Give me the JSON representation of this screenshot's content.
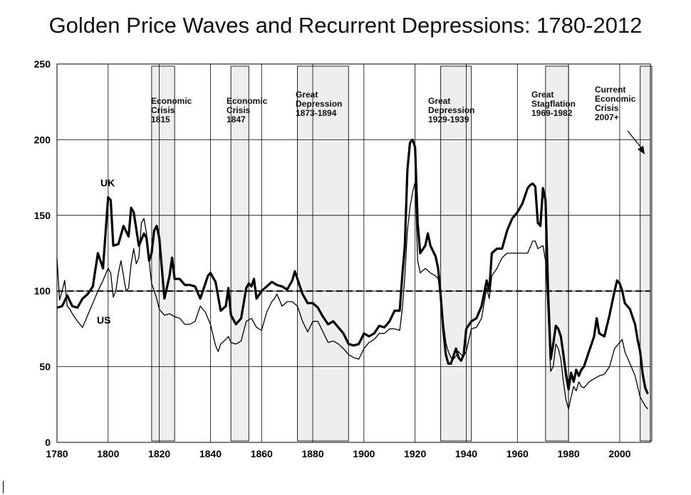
{
  "chart_data": {
    "type": "line",
    "title": "Golden Price Waves and Recurrent Depressions: 1780-2012",
    "xlabel": "",
    "ylabel": "",
    "xlim": [
      1780,
      2012
    ],
    "ylim": [
      0,
      250
    ],
    "xticks": [
      "1780",
      "1800",
      "1820",
      "1840",
      "1860",
      "1880",
      "1900",
      "1920",
      "1940",
      "1960",
      "1980",
      "2000"
    ],
    "yticks": [
      "0",
      "50",
      "100",
      "150",
      "200",
      "250"
    ],
    "grid": true,
    "reference_line": 100,
    "series": [
      {
        "name": "UK",
        "label": "UK",
        "style": "thick",
        "points": [
          [
            1780,
            89
          ],
          [
            1782,
            90
          ],
          [
            1784,
            97
          ],
          [
            1786,
            90
          ],
          [
            1788,
            89
          ],
          [
            1790,
            95
          ],
          [
            1792,
            98
          ],
          [
            1794,
            103
          ],
          [
            1796,
            125
          ],
          [
            1798,
            115
          ],
          [
            1800,
            162
          ],
          [
            1801,
            160
          ],
          [
            1802,
            130
          ],
          [
            1804,
            131
          ],
          [
            1806,
            143
          ],
          [
            1808,
            136
          ],
          [
            1809,
            155
          ],
          [
            1810,
            152
          ],
          [
            1812,
            130
          ],
          [
            1814,
            138
          ],
          [
            1815,
            135
          ],
          [
            1816,
            120
          ],
          [
            1817,
            125
          ],
          [
            1818,
            140
          ],
          [
            1819,
            143
          ],
          [
            1820,
            135
          ],
          [
            1822,
            95
          ],
          [
            1824,
            110
          ],
          [
            1825,
            122
          ],
          [
            1826,
            108
          ],
          [
            1828,
            108
          ],
          [
            1830,
            104
          ],
          [
            1832,
            104
          ],
          [
            1834,
            103
          ],
          [
            1836,
            95
          ],
          [
            1838,
            105
          ],
          [
            1839,
            110
          ],
          [
            1840,
            112
          ],
          [
            1842,
            106
          ],
          [
            1844,
            87
          ],
          [
            1846,
            90
          ],
          [
            1847,
            102
          ],
          [
            1848,
            84
          ],
          [
            1850,
            78
          ],
          [
            1852,
            82
          ],
          [
            1853,
            92
          ],
          [
            1854,
            102
          ],
          [
            1855,
            105
          ],
          [
            1856,
            103
          ],
          [
            1857,
            108
          ],
          [
            1858,
            95
          ],
          [
            1860,
            100
          ],
          [
            1862,
            103
          ],
          [
            1864,
            106
          ],
          [
            1866,
            104
          ],
          [
            1868,
            103
          ],
          [
            1870,
            101
          ],
          [
            1872,
            107
          ],
          [
            1873,
            113
          ],
          [
            1874,
            108
          ],
          [
            1876,
            98
          ],
          [
            1878,
            92
          ],
          [
            1880,
            92
          ],
          [
            1882,
            89
          ],
          [
            1884,
            83
          ],
          [
            1886,
            78
          ],
          [
            1888,
            80
          ],
          [
            1890,
            76
          ],
          [
            1892,
            72
          ],
          [
            1894,
            65
          ],
          [
            1896,
            64
          ],
          [
            1898,
            65
          ],
          [
            1900,
            72
          ],
          [
            1902,
            70
          ],
          [
            1904,
            72
          ],
          [
            1906,
            77
          ],
          [
            1908,
            76
          ],
          [
            1910,
            80
          ],
          [
            1912,
            87
          ],
          [
            1914,
            87
          ],
          [
            1915,
            110
          ],
          [
            1916,
            130
          ],
          [
            1917,
            180
          ],
          [
            1918,
            198
          ],
          [
            1919,
            200
          ],
          [
            1920,
            195
          ],
          [
            1921,
            145
          ],
          [
            1922,
            125
          ],
          [
            1924,
            130
          ],
          [
            1925,
            138
          ],
          [
            1926,
            130
          ],
          [
            1928,
            123
          ],
          [
            1929,
            115
          ],
          [
            1930,
            97
          ],
          [
            1931,
            75
          ],
          [
            1932,
            58
          ],
          [
            1933,
            52
          ],
          [
            1934,
            52
          ],
          [
            1935,
            57
          ],
          [
            1936,
            62
          ],
          [
            1937,
            56
          ],
          [
            1938,
            54
          ],
          [
            1939,
            58
          ],
          [
            1940,
            75
          ],
          [
            1942,
            80
          ],
          [
            1944,
            82
          ],
          [
            1946,
            90
          ],
          [
            1948,
            107
          ],
          [
            1949,
            100
          ],
          [
            1950,
            125
          ],
          [
            1952,
            128
          ],
          [
            1954,
            128
          ],
          [
            1956,
            140
          ],
          [
            1958,
            148
          ],
          [
            1960,
            152
          ],
          [
            1962,
            158
          ],
          [
            1964,
            168
          ],
          [
            1965,
            170
          ],
          [
            1966,
            171
          ],
          [
            1967,
            169
          ],
          [
            1968,
            145
          ],
          [
            1969,
            143
          ],
          [
            1970,
            168
          ],
          [
            1971,
            160
          ],
          [
            1972,
            100
          ],
          [
            1973,
            55
          ],
          [
            1974,
            65
          ],
          [
            1975,
            77
          ],
          [
            1976,
            75
          ],
          [
            1977,
            70
          ],
          [
            1978,
            58
          ],
          [
            1979,
            45
          ],
          [
            1980,
            35
          ],
          [
            1981,
            46
          ],
          [
            1982,
            40
          ],
          [
            1983,
            48
          ],
          [
            1984,
            44
          ],
          [
            1985,
            48
          ],
          [
            1986,
            50
          ],
          [
            1988,
            60
          ],
          [
            1990,
            70
          ],
          [
            1991,
            82
          ],
          [
            1992,
            72
          ],
          [
            1994,
            70
          ],
          [
            1996,
            84
          ],
          [
            1998,
            100
          ],
          [
            1999,
            107
          ],
          [
            2000,
            105
          ],
          [
            2001,
            100
          ],
          [
            2002,
            92
          ],
          [
            2004,
            88
          ],
          [
            2006,
            78
          ],
          [
            2007,
            68
          ],
          [
            2008,
            60
          ],
          [
            2009,
            45
          ],
          [
            2010,
            36
          ],
          [
            2011,
            32
          ]
        ]
      },
      {
        "name": "US",
        "label": "US",
        "style": "thin",
        "points": [
          [
            1780,
            122
          ],
          [
            1781,
            94
          ],
          [
            1782,
            100
          ],
          [
            1783,
            107
          ],
          [
            1784,
            90
          ],
          [
            1785,
            88
          ],
          [
            1786,
            85
          ],
          [
            1788,
            80
          ],
          [
            1790,
            76
          ],
          [
            1792,
            84
          ],
          [
            1794,
            92
          ],
          [
            1796,
            100
          ],
          [
            1798,
            107
          ],
          [
            1800,
            115
          ],
          [
            1801,
            112
          ],
          [
            1802,
            96
          ],
          [
            1803,
            100
          ],
          [
            1804,
            112
          ],
          [
            1805,
            120
          ],
          [
            1806,
            110
          ],
          [
            1807,
            100
          ],
          [
            1808,
            102
          ],
          [
            1809,
            118
          ],
          [
            1810,
            128
          ],
          [
            1811,
            118
          ],
          [
            1812,
            122
          ],
          [
            1813,
            145
          ],
          [
            1814,
            148
          ],
          [
            1815,
            138
          ],
          [
            1816,
            120
          ],
          [
            1817,
            105
          ],
          [
            1818,
            100
          ],
          [
            1819,
            95
          ],
          [
            1820,
            88
          ],
          [
            1822,
            84
          ],
          [
            1824,
            85
          ],
          [
            1826,
            83
          ],
          [
            1828,
            82
          ],
          [
            1830,
            78
          ],
          [
            1832,
            78
          ],
          [
            1834,
            80
          ],
          [
            1836,
            90
          ],
          [
            1838,
            86
          ],
          [
            1840,
            78
          ],
          [
            1842,
            64
          ],
          [
            1843,
            60
          ],
          [
            1844,
            65
          ],
          [
            1846,
            68
          ],
          [
            1847,
            70
          ],
          [
            1848,
            66
          ],
          [
            1850,
            65
          ],
          [
            1852,
            67
          ],
          [
            1854,
            80
          ],
          [
            1856,
            82
          ],
          [
            1858,
            76
          ],
          [
            1860,
            74
          ],
          [
            1862,
            86
          ],
          [
            1864,
            93
          ],
          [
            1865,
            95
          ],
          [
            1866,
            98
          ],
          [
            1868,
            90
          ],
          [
            1870,
            93
          ],
          [
            1872,
            93
          ],
          [
            1874,
            90
          ],
          [
            1876,
            80
          ],
          [
            1878,
            73
          ],
          [
            1880,
            80
          ],
          [
            1882,
            80
          ],
          [
            1884,
            73
          ],
          [
            1886,
            66
          ],
          [
            1888,
            67
          ],
          [
            1890,
            65
          ],
          [
            1892,
            62
          ],
          [
            1894,
            58
          ],
          [
            1896,
            56
          ],
          [
            1898,
            55
          ],
          [
            1900,
            62
          ],
          [
            1902,
            66
          ],
          [
            1904,
            68
          ],
          [
            1906,
            72
          ],
          [
            1908,
            72
          ],
          [
            1910,
            75
          ],
          [
            1912,
            75
          ],
          [
            1914,
            74
          ],
          [
            1915,
            88
          ],
          [
            1916,
            110
          ],
          [
            1917,
            140
          ],
          [
            1918,
            155
          ],
          [
            1919,
            165
          ],
          [
            1920,
            172
          ],
          [
            1921,
            120
          ],
          [
            1922,
            112
          ],
          [
            1924,
            115
          ],
          [
            1926,
            112
          ],
          [
            1928,
            110
          ],
          [
            1929,
            108
          ],
          [
            1930,
            98
          ],
          [
            1931,
            80
          ],
          [
            1932,
            66
          ],
          [
            1933,
            60
          ],
          [
            1934,
            56
          ],
          [
            1935,
            55
          ],
          [
            1936,
            57
          ],
          [
            1937,
            60
          ],
          [
            1938,
            58
          ],
          [
            1939,
            57
          ],
          [
            1940,
            60
          ],
          [
            1942,
            75
          ],
          [
            1944,
            76
          ],
          [
            1946,
            82
          ],
          [
            1948,
            102
          ],
          [
            1949,
            95
          ],
          [
            1950,
            110
          ],
          [
            1952,
            115
          ],
          [
            1954,
            122
          ],
          [
            1956,
            125
          ],
          [
            1958,
            125
          ],
          [
            1960,
            125
          ],
          [
            1962,
            125
          ],
          [
            1964,
            125
          ],
          [
            1966,
            133
          ],
          [
            1967,
            133
          ],
          [
            1968,
            128
          ],
          [
            1970,
            130
          ],
          [
            1971,
            120
          ],
          [
            1972,
            85
          ],
          [
            1973,
            47
          ],
          [
            1974,
            50
          ],
          [
            1975,
            65
          ],
          [
            1976,
            62
          ],
          [
            1977,
            55
          ],
          [
            1978,
            40
          ],
          [
            1979,
            28
          ],
          [
            1980,
            22
          ],
          [
            1981,
            30
          ],
          [
            1982,
            37
          ],
          [
            1983,
            34
          ],
          [
            1984,
            40
          ],
          [
            1985,
            37
          ],
          [
            1986,
            36
          ],
          [
            1988,
            40
          ],
          [
            1990,
            42
          ],
          [
            1992,
            44
          ],
          [
            1994,
            45
          ],
          [
            1996,
            50
          ],
          [
            1998,
            62
          ],
          [
            2000,
            66
          ],
          [
            2001,
            68
          ],
          [
            2002,
            60
          ],
          [
            2004,
            52
          ],
          [
            2006,
            44
          ],
          [
            2008,
            30
          ],
          [
            2010,
            24
          ],
          [
            2011,
            22
          ]
        ]
      }
    ],
    "shaded_periods": [
      {
        "start": 1817,
        "end": 1826,
        "label": [
          "Economic",
          "Crisis",
          "1815"
        ]
      },
      {
        "start": 1848,
        "end": 1855,
        "label": [
          "Economic",
          "Crisis",
          "1847"
        ]
      },
      {
        "start": 1874,
        "end": 1894,
        "label": [
          "Great",
          "Depression",
          "1873-1894"
        ]
      },
      {
        "start": 1930,
        "end": 1942,
        "label": [
          "Great",
          "Depression",
          "1929-1939"
        ]
      },
      {
        "start": 1971,
        "end": 1980,
        "label": [
          "Great",
          "Stagflation",
          "1969-1982"
        ]
      },
      {
        "start": 2008,
        "end": 2012,
        "label": [
          "Current",
          "Economic",
          "Crisis",
          "2007+"
        ]
      }
    ]
  }
}
